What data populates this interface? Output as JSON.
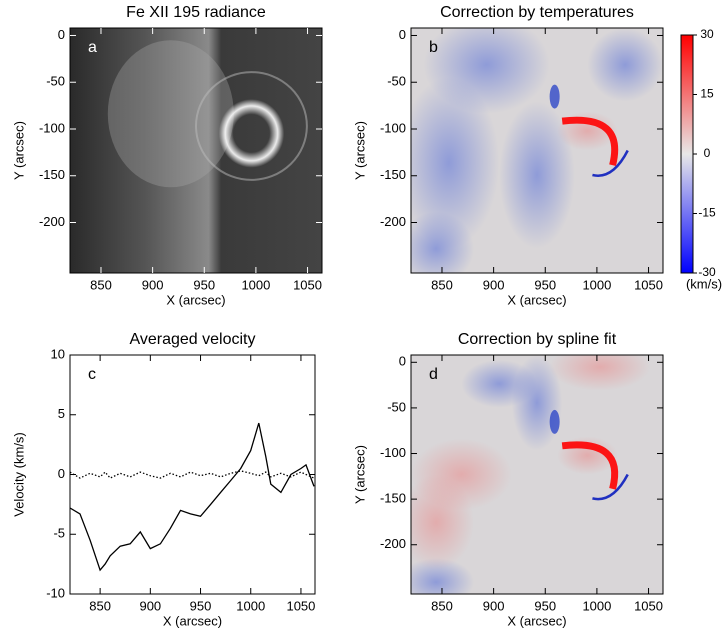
{
  "chart_data": [
    {
      "type": "image",
      "title": "Fe XII 195 radiance",
      "panel_label": "a",
      "xlabel": "X (arcsec)",
      "ylabel": "Y (arcsec)",
      "style": "radiance",
      "xlim": [
        820,
        1064
      ],
      "ylim": [
        -254,
        8
      ],
      "xticks": [
        850,
        900,
        950,
        1000,
        1050
      ],
      "yticks": [
        0,
        -50,
        -100,
        -150,
        -200
      ]
    },
    {
      "type": "image",
      "title": "Correction by temperatures",
      "panel_label": "b",
      "xlabel": "X (arcsec)",
      "ylabel": "Y (arcsec)",
      "style": "velocity",
      "xlim": [
        820,
        1064
      ],
      "ylim": [
        -254,
        8
      ],
      "xticks": [
        850,
        900,
        950,
        1000,
        1050
      ],
      "yticks": [
        0,
        -50,
        -100,
        -150,
        -200
      ]
    },
    {
      "type": "colorbar",
      "label": "(km/s)",
      "colors": [
        "#0000ff",
        "#e8e8e8",
        "#ff0000"
      ],
      "ylim": [
        -30,
        30
      ],
      "yticks": [
        30,
        15,
        0,
        -15,
        -30
      ]
    },
    {
      "type": "line",
      "title": "Averaged velocity",
      "panel_label": "c",
      "xlabel": "X (arcsec)",
      "ylabel": "Velocity (km/s)",
      "xlim": [
        820,
        1064
      ],
      "ylim": [
        -10,
        10
      ],
      "xticks": [
        850,
        900,
        950,
        1000,
        1050
      ],
      "yticks": [
        10,
        5,
        0,
        -5,
        -10
      ],
      "x": [
        820,
        830,
        840,
        850,
        855,
        860,
        870,
        880,
        890,
        900,
        910,
        920,
        930,
        940,
        950,
        960,
        970,
        980,
        990,
        1000,
        1008,
        1015,
        1020,
        1030,
        1040,
        1050,
        1055,
        1063
      ],
      "series": [
        {
          "color": "#000000",
          "style": "solid",
          "values": [
            -2.8,
            -3.3,
            -5.5,
            -8.0,
            -7.5,
            -6.8,
            -6.0,
            -5.8,
            -4.8,
            -6.2,
            -5.8,
            -4.5,
            -3.0,
            -3.3,
            -3.5,
            -2.5,
            -1.5,
            -0.5,
            0.5,
            2.0,
            4.3,
            1.5,
            -0.8,
            -1.5,
            0.0,
            0.5,
            0.8,
            -1.0
          ]
        },
        {
          "color": "#000000",
          "style": "dotted",
          "values": [
            0.2,
            -0.3,
            0.1,
            -0.2,
            0.2,
            -0.3,
            0.1,
            -0.2,
            0.2,
            -0.1,
            -0.3,
            0.1,
            -0.2,
            0.2,
            -0.1,
            0.1,
            -0.2,
            0.1,
            0.3,
            0.1,
            -0.1,
            0.2,
            -0.2,
            0.1,
            -0.2,
            0.2,
            0.0,
            -0.3
          ]
        }
      ]
    },
    {
      "type": "image",
      "title": "Correction by spline fit",
      "panel_label": "d",
      "xlabel": "X (arcsec)",
      "ylabel": "Y (arcsec)",
      "style": "velocity2",
      "xlim": [
        820,
        1064
      ],
      "ylim": [
        -254,
        8
      ],
      "xticks": [
        850,
        900,
        950,
        1000,
        1050
      ],
      "yticks": [
        0,
        -50,
        -100,
        -150,
        -200
      ]
    }
  ]
}
